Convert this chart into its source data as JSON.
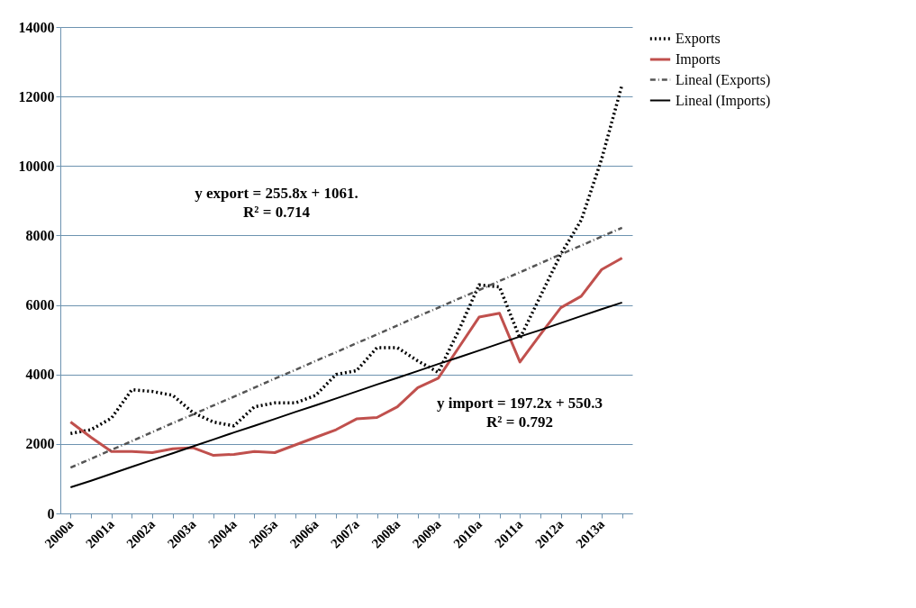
{
  "chart_data": {
    "type": "line",
    "categories": [
      "2000a",
      null,
      "2001a",
      null,
      "2002a",
      null,
      "2003a",
      null,
      "2004a",
      null,
      "2005a",
      null,
      "2006a",
      null,
      "2007a",
      null,
      "2008a",
      null,
      "2009a",
      null,
      "2010a",
      null,
      "2011a",
      null,
      "2012a",
      null,
      "2013a",
      null
    ],
    "ylim": [
      0,
      14000
    ],
    "yticks": [
      0,
      2000,
      4000,
      6000,
      8000,
      10000,
      12000,
      14000
    ],
    "grid": "y",
    "legend": "right",
    "marker": "none",
    "series": [
      {
        "name": "Exports",
        "color": "#000000",
        "line_style": "dotted",
        "values": [
          2300,
          2410,
          2740,
          3560,
          3510,
          3400,
          2900,
          2630,
          2520,
          3070,
          3180,
          3180,
          3400,
          4000,
          4110,
          4770,
          4770,
          4390,
          4060,
          5260,
          6580,
          6520,
          5040,
          6250,
          7460,
          8440,
          10200,
          12340
        ]
      },
      {
        "name": "Imports",
        "color": "#c0504d",
        "line_style": "solid",
        "values": [
          2630,
          2190,
          1780,
          1780,
          1750,
          1860,
          1890,
          1670,
          1700,
          1780,
          1750,
          1970,
          2190,
          2410,
          2720,
          2760,
          3070,
          3620,
          3890,
          4770,
          5650,
          5760,
          4360,
          5150,
          5920,
          6250,
          7020,
          7350
        ]
      },
      {
        "name": "Lineal (Exports)",
        "color": "#555555",
        "line_style": "dashed",
        "values": [
          1320,
          1570,
          1830,
          2080,
          2340,
          2600,
          2850,
          3110,
          3360,
          3620,
          3880,
          4130,
          4390,
          4640,
          4900,
          5150,
          5410,
          5670,
          5920,
          6180,
          6430,
          6690,
          6940,
          7200,
          7460,
          7710,
          7970,
          8220
        ]
      },
      {
        "name": "Lineal (Imports)",
        "color": "#000000",
        "line_style": "solid",
        "values": [
          750,
          940,
          1140,
          1340,
          1540,
          1730,
          1930,
          2130,
          2330,
          2520,
          2720,
          2920,
          3110,
          3310,
          3510,
          3710,
          3900,
          4100,
          4300,
          4490,
          4690,
          4890,
          5090,
          5280,
          5480,
          5680,
          5880,
          6070
        ]
      }
    ],
    "annotations": [
      "y export = 255.8x + 1061.\nR² = 0.714",
      "y  import = 197.2x + 550.3\nR² = 0.792"
    ]
  }
}
